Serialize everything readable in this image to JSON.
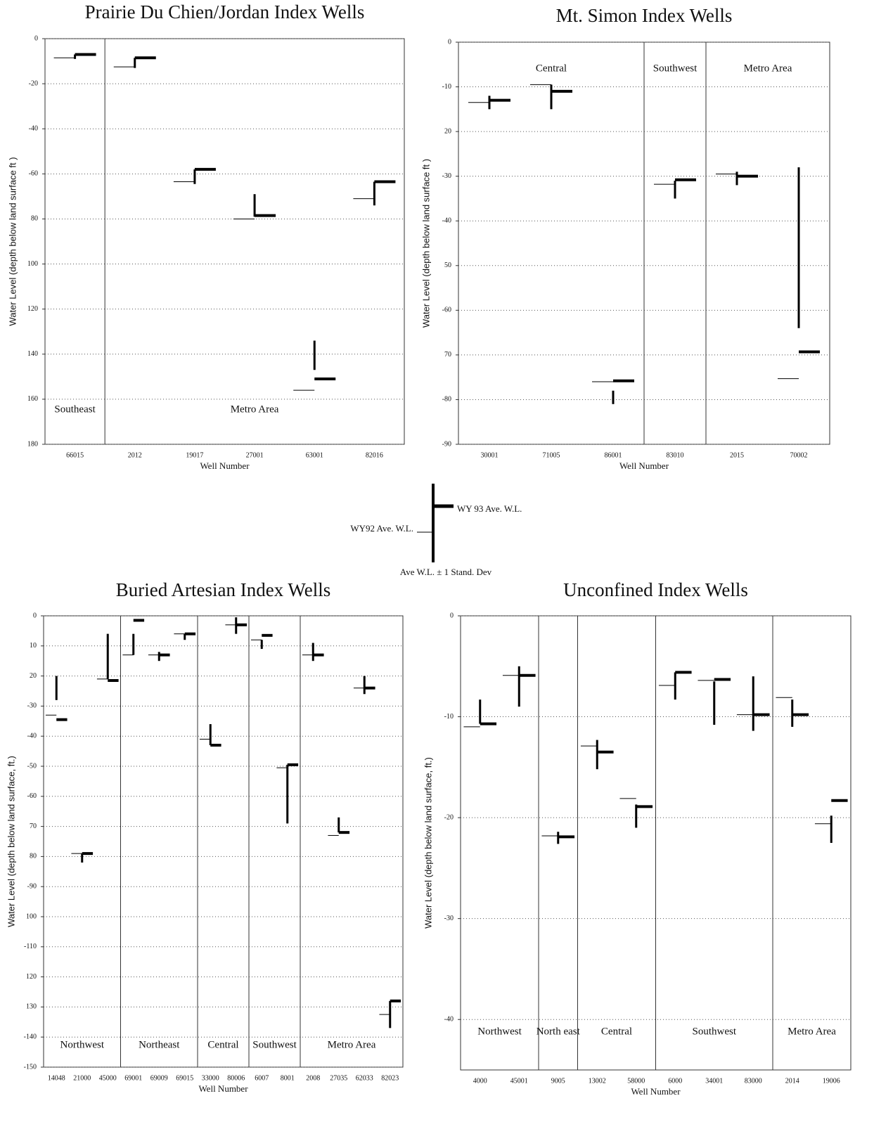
{
  "legend": {
    "wy93": "WY 93 Ave. W.L.",
    "wy92": "WY92 Ave. W.L.",
    "sd": "Ave W.L. ± 1 Stand. Dev"
  },
  "chart_data": [
    {
      "type": "range",
      "title": "Prairie Du Chien/Jordan Index Wells",
      "x_label": "Well Number",
      "y_label": "Water Level (depth below land surface  ft )",
      "groups": [
        {
          "name": "Southeast",
          "wells": [
            "66015"
          ]
        },
        {
          "name": "Metro Area",
          "wells": [
            "2012",
            "19017",
            "27001",
            "63001",
            "82016"
          ]
        }
      ],
      "wy92": [
        8.5,
        12.5,
        63.5,
        80,
        156,
        71
      ],
      "wy93": [
        7,
        8.5,
        58,
        78.5,
        151,
        63.5
      ],
      "sd_low": [
        7,
        8.5,
        58,
        69,
        134,
        63.5
      ],
      "sd_high": [
        9,
        13,
        64.5,
        79,
        147,
        74
      ],
      "ylim": [
        0,
        180
      ],
      "yticks": [
        0,
        {
          "value": 20,
          "label": "-20"
        },
        {
          "value": 40,
          "label": "-40"
        },
        {
          "value": 60,
          "label": "-60"
        },
        80,
        100,
        120,
        140,
        160,
        180
      ],
      "grid": true
    },
    {
      "type": "range",
      "title": "Mt. Simon Index Wells",
      "x_label": "Well Number",
      "y_label": "Water Level (depth below land surface  ft )",
      "groups": [
        {
          "name": "Central",
          "wells": [
            "30001",
            "71005",
            "86001"
          ]
        },
        {
          "name": "Southwest",
          "wells": [
            "83010"
          ]
        },
        {
          "name": "Metro Area",
          "wells": [
            "2015",
            "70002"
          ]
        }
      ],
      "wy92": [
        13.5,
        9.5,
        76,
        31.8,
        29.5,
        75.3
      ],
      "wy93": [
        13,
        11,
        75.8,
        30.8,
        30,
        69.3
      ],
      "sd_low": [
        12,
        9.5,
        78,
        31,
        29,
        28
      ],
      "sd_high": [
        15,
        15,
        81,
        35,
        32,
        64
      ],
      "ylim": [
        0,
        90
      ],
      "yticks": [
        0,
        {
          "value": 10,
          "label": "-10"
        },
        20,
        {
          "value": 30,
          "label": "-30"
        },
        {
          "value": 40,
          "label": "-40"
        },
        50,
        {
          "value": 60,
          "label": "-60"
        },
        70,
        {
          "value": 80,
          "label": "-80"
        },
        {
          "value": 90,
          "label": "-90"
        }
      ],
      "grid": true
    },
    {
      "type": "range",
      "title": "Buried Artesian Index Wells",
      "x_label": "Well Number",
      "y_label": "Water Level (depth below land surface, ft.)",
      "groups": [
        {
          "name": "Northwest",
          "wells": [
            "14048",
            "21000",
            "45000"
          ]
        },
        {
          "name": "Northeast",
          "wells": [
            "69001",
            "69009",
            "69015"
          ]
        },
        {
          "name": "Central",
          "wells": [
            "33000",
            "80006"
          ]
        },
        {
          "name": "Southwest",
          "wells": [
            "6007",
            "8001"
          ]
        },
        {
          "name": "Metro Area",
          "wells": [
            "2008",
            "27035",
            "62033",
            "82023"
          ]
        }
      ],
      "wy92": [
        33,
        79,
        21,
        13,
        13,
        6,
        41,
        3,
        8,
        50.5,
        13,
        73,
        24,
        132.5
      ],
      "wy93": [
        34.5,
        79,
        21.5,
        1.5,
        13,
        6,
        43,
        3,
        6.5,
        49.5,
        13,
        72,
        24,
        128
      ],
      "sd_low": [
        20,
        79,
        6,
        6,
        12,
        6,
        36,
        0.5,
        8,
        49.5,
        9,
        67,
        20,
        128
      ],
      "sd_high": [
        28,
        82,
        21,
        13,
        15,
        8,
        43,
        6,
        11,
        69,
        15,
        72,
        26,
        137
      ],
      "ylim": [
        0,
        150
      ],
      "yticks": [
        0,
        10,
        20,
        {
          "value": 30,
          "label": "-30"
        },
        {
          "value": 40,
          "label": "-40"
        },
        {
          "value": 50,
          "label": "-50"
        },
        {
          "value": 60,
          "label": "-60"
        },
        70,
        80,
        {
          "value": 90,
          "label": "-90"
        },
        100,
        {
          "value": 110,
          "label": "-110"
        },
        120,
        130,
        {
          "value": 140,
          "label": "-140"
        },
        {
          "value": 150,
          "label": "-150"
        }
      ],
      "grid": true
    },
    {
      "type": "range",
      "title": "Unconfined  Index Wells",
      "x_label": "Well Number",
      "y_label": "Water Level (depth below land surface, ft.)",
      "groups": [
        {
          "name": "Northwest",
          "wells": [
            "4000",
            "45001"
          ]
        },
        {
          "name": "North east",
          "wells": [
            "9005"
          ]
        },
        {
          "name": "Central",
          "wells": [
            "13002",
            "58000"
          ]
        },
        {
          "name": "Southwest",
          "wells": [
            "6000",
            "34001",
            "83000"
          ]
        },
        {
          "name": "Metro Area",
          "wells": [
            "2014",
            "19006"
          ]
        }
      ],
      "wy92": [
        11,
        5.9,
        21.8,
        12.9,
        18.1,
        6.9,
        6.4,
        9.8,
        8.1,
        20.6
      ],
      "wy93": [
        10.7,
        5.9,
        21.9,
        13.5,
        18.9,
        5.6,
        6.3,
        9.8,
        9.8,
        18.3
      ],
      "sd_low": [
        8.3,
        5,
        21.4,
        12.3,
        18.7,
        5.6,
        6.5,
        6,
        8.3,
        19.8
      ],
      "sd_high": [
        10.7,
        9,
        22.6,
        15.2,
        21,
        8.3,
        10.8,
        11.4,
        11,
        22.5
      ],
      "ylim": [
        0,
        45
      ],
      "yticks": [
        0,
        {
          "value": 10,
          "label": "-10"
        },
        {
          "value": 20,
          "label": "-20"
        },
        {
          "value": 30,
          "label": "-30"
        },
        {
          "value": 40,
          "label": "-40"
        }
      ],
      "grid": true
    }
  ]
}
